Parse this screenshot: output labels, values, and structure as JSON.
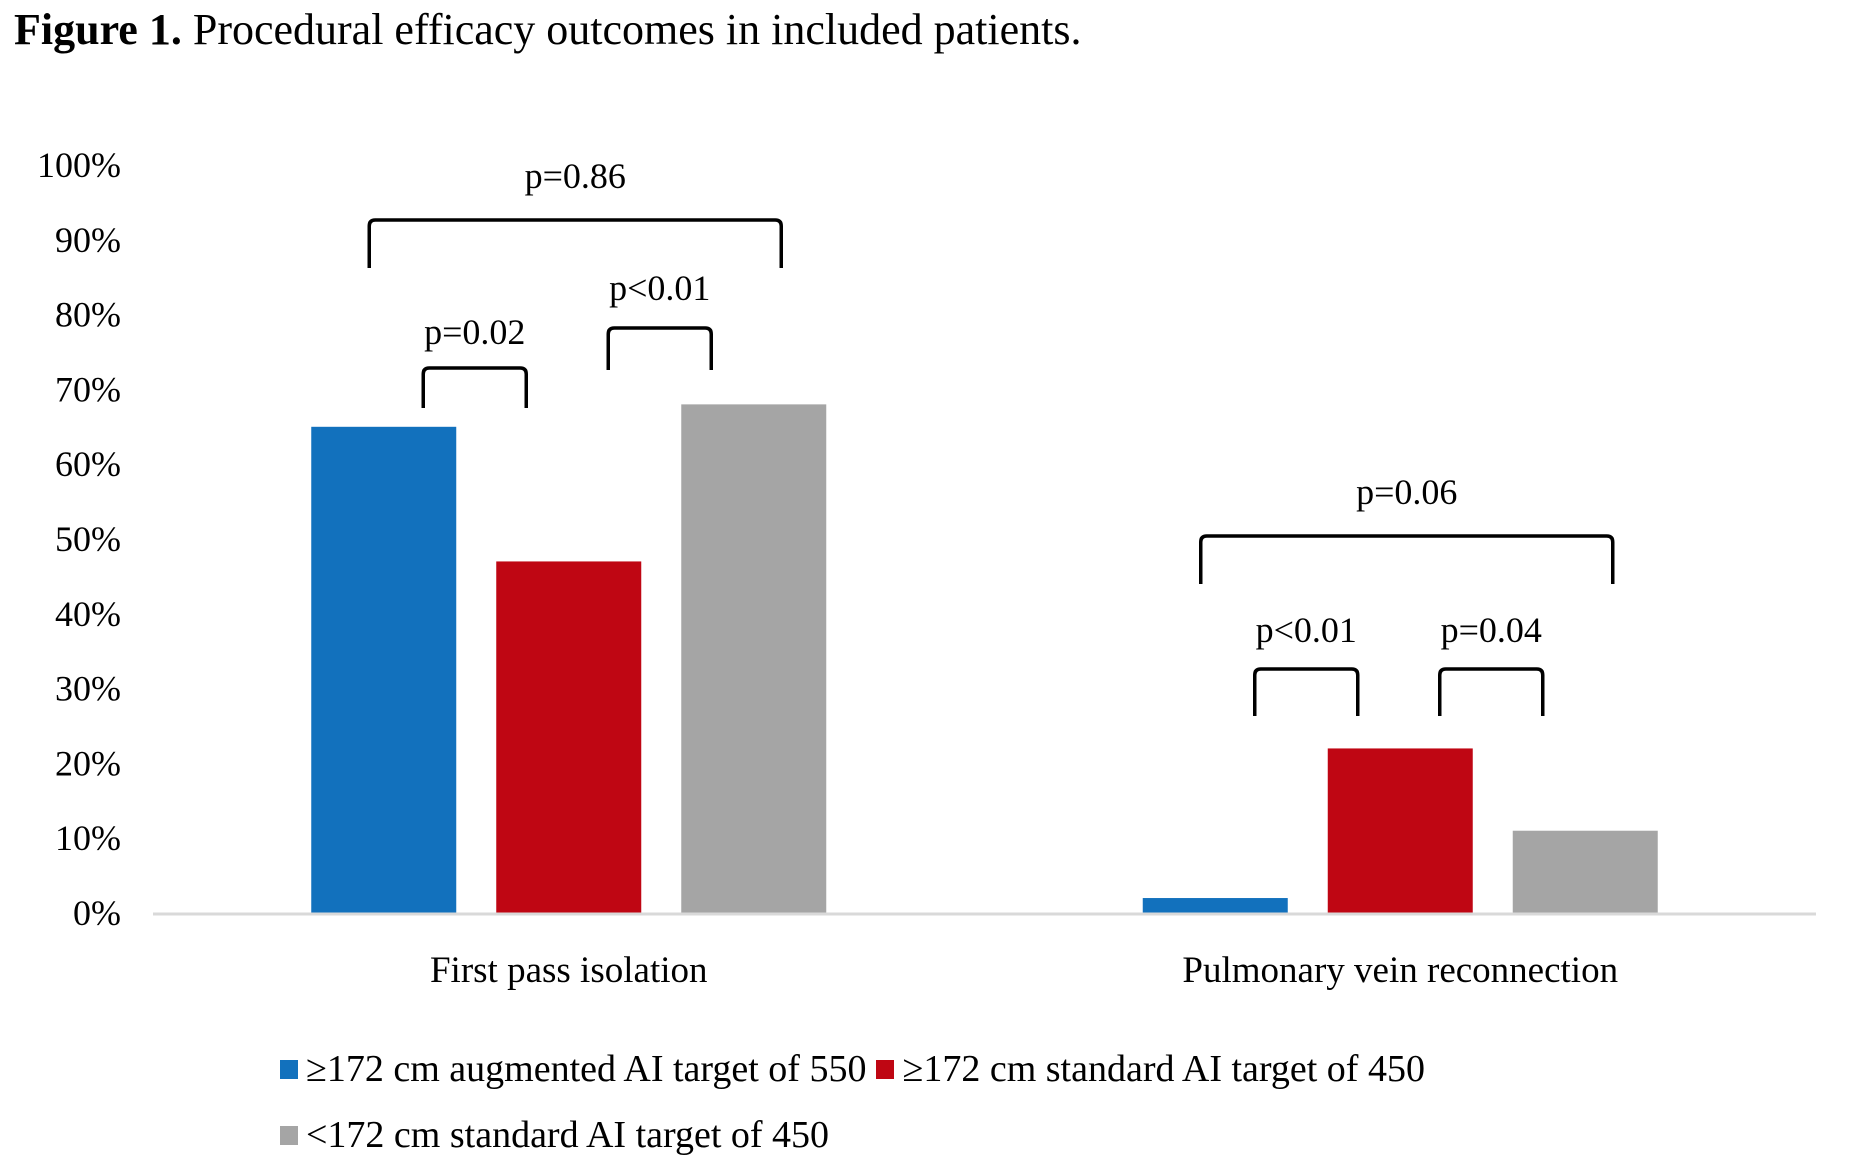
{
  "title": {
    "lead": "Figure 1.",
    "text": " Procedural efficacy outcomes in included patients."
  },
  "chart_data": {
    "type": "bar",
    "title": "Figure 1. Procedural efficacy outcomes in included patients.",
    "xlabel": "",
    "ylabel": "",
    "ylim": [
      0,
      100
    ],
    "y_unit": "%",
    "yticks": [
      0,
      10,
      20,
      30,
      40,
      50,
      60,
      70,
      80,
      90,
      100
    ],
    "ytick_labels": [
      "0%",
      "10%",
      "20%",
      "30%",
      "40%",
      "50%",
      "60%",
      "70%",
      "80%",
      "90%",
      "100%"
    ],
    "grid": false,
    "categories": [
      "First pass isolation",
      "Pulmonary vein reconnection"
    ],
    "series": [
      {
        "name": "≥172 cm augmented AI target of 550",
        "color": "#1271BD",
        "values": [
          65,
          2
        ]
      },
      {
        "name": "≥172 cm standard AI target of 450",
        "color": "#BF0613",
        "values": [
          47,
          22
        ]
      },
      {
        "name": "<172 cm standard AI target of 450",
        "color": "#A5A5A5",
        "values": [
          68,
          11
        ]
      }
    ],
    "legend_position": "bottom",
    "annotations": [
      {
        "category": 0,
        "from_series": 0,
        "to_series": 2,
        "label": "p=0.86",
        "level": "upper"
      },
      {
        "category": 0,
        "from_series": 0,
        "to_series": 1,
        "label": "p=0.02",
        "level": "lower"
      },
      {
        "category": 0,
        "from_series": 1,
        "to_series": 2,
        "label": "p<0.01",
        "level": "middle"
      },
      {
        "category": 1,
        "from_series": 0,
        "to_series": 2,
        "label": "p=0.06",
        "level": "upper"
      },
      {
        "category": 1,
        "from_series": 0,
        "to_series": 1,
        "label": "p<0.01",
        "level": "lower"
      },
      {
        "category": 1,
        "from_series": 1,
        "to_series": 2,
        "label": "p=0.04",
        "level": "lower"
      }
    ]
  }
}
